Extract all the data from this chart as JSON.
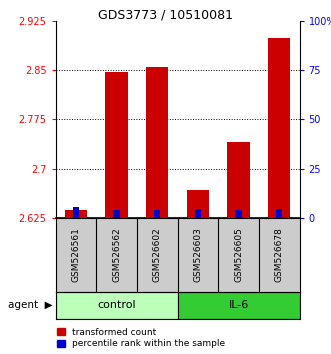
{
  "title": "GDS3773 / 10510081",
  "samples": [
    "GSM526561",
    "GSM526562",
    "GSM526602",
    "GSM526603",
    "GSM526605",
    "GSM526678"
  ],
  "red_values": [
    2.637,
    2.848,
    2.855,
    2.668,
    2.74,
    2.9
  ],
  "blue_values": [
    2.641,
    2.637,
    2.637,
    2.638,
    2.637,
    2.638
  ],
  "ymin": 2.625,
  "ymax": 2.925,
  "yticks_left": [
    2.625,
    2.7,
    2.775,
    2.85,
    2.925
  ],
  "yticks_right": [
    0,
    25,
    50,
    75,
    100
  ],
  "grid_lines": [
    2.7,
    2.775,
    2.85
  ],
  "groups": [
    {
      "label": "control",
      "start": 0,
      "end": 3,
      "color": "#bbffbb"
    },
    {
      "label": "IL-6",
      "start": 3,
      "end": 6,
      "color": "#33cc33"
    }
  ],
  "bar_width": 0.55,
  "red_color": "#cc0000",
  "blue_color": "#0000cc",
  "agent_label": "agent",
  "legend_red": "transformed count",
  "legend_blue": "percentile rank within the sample",
  "background_color": "#ffffff",
  "plot_bg": "#ffffff",
  "label_bg": "#cccccc"
}
